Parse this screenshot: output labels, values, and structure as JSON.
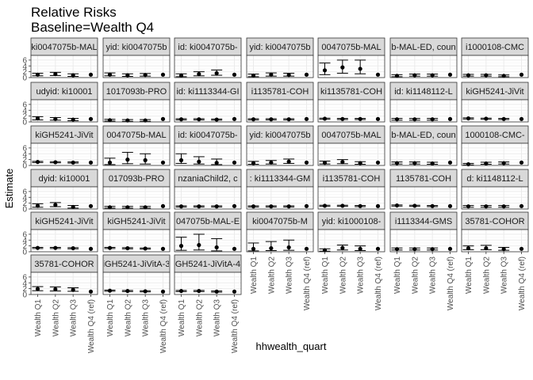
{
  "chart_data": {
    "type": "scatter",
    "title": "Relative Risks",
    "subtitle": "Baseline=Wealth Q4",
    "xlabel": "hhwealth_quart",
    "ylabel": "Estimate",
    "categories": [
      "Wealth Q1",
      "Wealth Q2",
      "Wealth Q3",
      "Wealth Q4 (ref)"
    ],
    "ylim": [
      0,
      7.6
    ],
    "yticks": [
      0,
      2,
      4,
      6
    ],
    "grid": true,
    "facet_columns": 7,
    "panels": [
      {
        "label": "ki0047075b-MAL",
        "est": [
          1.0,
          1.2,
          0.8,
          1.0
        ],
        "lo": [
          0.6,
          0.7,
          0.4,
          1.0
        ],
        "hi": [
          1.5,
          1.8,
          1.3,
          1.0
        ]
      },
      {
        "label": "yid: ki0047075b",
        "est": [
          1.0,
          0.8,
          0.9,
          1.0
        ],
        "lo": [
          0.6,
          0.4,
          0.5,
          1.0
        ],
        "hi": [
          1.6,
          1.3,
          1.4,
          1.0
        ]
      },
      {
        "label": "id: ki0047075b-",
        "est": [
          0.7,
          1.2,
          1.5,
          1.0
        ],
        "lo": [
          0.3,
          0.6,
          0.8,
          1.0
        ],
        "hi": [
          1.3,
          2.0,
          2.6,
          1.0
        ]
      },
      {
        "label": "yid: ki0047075b",
        "est": [
          0.7,
          1.0,
          0.9,
          1.0
        ],
        "lo": [
          0.3,
          0.5,
          0.5,
          1.0
        ],
        "hi": [
          1.2,
          1.6,
          1.5,
          1.0
        ]
      },
      {
        "label": "0047075b-MAL",
        "est": [
          2.5,
          3.5,
          3.0,
          1.0
        ],
        "lo": [
          1.0,
          1.5,
          1.3,
          1.0
        ],
        "hi": [
          5.0,
          6.0,
          6.0,
          1.0
        ]
      },
      {
        "label": "b-MAL-ED, coun",
        "est": [
          0.6,
          0.8,
          0.8,
          1.0
        ],
        "lo": [
          0.3,
          0.5,
          0.5,
          1.0
        ],
        "hi": [
          1.0,
          1.2,
          1.2,
          1.0
        ]
      },
      {
        "label": "i1000108-CMC",
        "est": [
          0.8,
          0.8,
          0.6,
          1.0
        ],
        "lo": [
          0.5,
          0.5,
          0.3,
          1.0
        ],
        "hi": [
          1.1,
          1.1,
          0.9,
          1.0
        ]
      },
      {
        "label": "udyid: ki10001",
        "est": [
          1.2,
          1.0,
          0.8,
          1.0
        ],
        "lo": [
          0.7,
          0.6,
          0.4,
          1.0
        ],
        "hi": [
          1.8,
          1.5,
          1.2,
          1.0
        ]
      },
      {
        "label": "1017093b-PRO",
        "est": [
          0.6,
          0.5,
          0.5,
          1.0
        ],
        "lo": [
          0.3,
          0.2,
          0.2,
          1.0
        ],
        "hi": [
          0.9,
          0.8,
          0.8,
          1.0
        ]
      },
      {
        "label": "id: ki1113344-GI",
        "est": [
          0.9,
          0.9,
          0.8,
          1.0
        ],
        "lo": [
          0.7,
          0.7,
          0.6,
          1.0
        ],
        "hi": [
          1.1,
          1.1,
          1.0,
          1.0
        ]
      },
      {
        "label": "i1135781-COH",
        "est": [
          0.9,
          0.9,
          0.9,
          1.0
        ],
        "lo": [
          0.7,
          0.7,
          0.7,
          1.0
        ],
        "hi": [
          1.1,
          1.1,
          1.1,
          1.0
        ]
      },
      {
        "label": "ki1135781-COH",
        "est": [
          1.1,
          1.0,
          1.0,
          1.0
        ],
        "lo": [
          0.9,
          0.8,
          0.8,
          1.0
        ],
        "hi": [
          1.3,
          1.2,
          1.2,
          1.0
        ]
      },
      {
        "label": "id: ki1148112-L",
        "est": [
          0.9,
          0.9,
          0.9,
          1.0
        ],
        "lo": [
          0.6,
          0.6,
          0.6,
          1.0
        ],
        "hi": [
          1.2,
          1.2,
          1.2,
          1.0
        ]
      },
      {
        "label": "kiGH5241-JiVit",
        "est": [
          1.2,
          1.1,
          1.0,
          1.0
        ],
        "lo": [
          1.0,
          0.9,
          0.8,
          1.0
        ],
        "hi": [
          1.4,
          1.3,
          1.2,
          1.0
        ]
      },
      {
        "label": "kiGH5241-JiVit",
        "est": [
          1.2,
          1.1,
          1.0,
          1.0
        ],
        "lo": [
          1.0,
          0.9,
          0.8,
          1.0
        ],
        "hi": [
          1.4,
          1.3,
          1.2,
          1.0
        ]
      },
      {
        "label": "0047075b-MAL",
        "est": [
          1.0,
          2.0,
          1.8,
          1.0
        ],
        "lo": [
          0.3,
          0.6,
          0.5,
          1.0
        ],
        "hi": [
          2.5,
          4.5,
          4.0,
          1.0
        ]
      },
      {
        "label": "id: ki0047075b-",
        "est": [
          1.8,
          1.3,
          0.9,
          1.0
        ],
        "lo": [
          0.7,
          0.5,
          0.3,
          1.0
        ],
        "hi": [
          4.0,
          3.0,
          2.2,
          1.0
        ]
      },
      {
        "label": "yid: ki0047075b",
        "est": [
          0.8,
          1.0,
          1.3,
          1.0
        ],
        "lo": [
          0.4,
          0.5,
          0.7,
          1.0
        ],
        "hi": [
          1.4,
          1.7,
          2.2,
          1.0
        ]
      },
      {
        "label": "0047075b-MAL",
        "est": [
          0.9,
          1.2,
          0.8,
          1.0
        ],
        "lo": [
          0.5,
          0.6,
          0.4,
          1.0
        ],
        "hi": [
          1.5,
          2.0,
          1.3,
          1.0
        ]
      },
      {
        "label": "b-MAL-ED, coun",
        "est": [
          0.8,
          0.8,
          0.7,
          1.0
        ],
        "lo": [
          0.5,
          0.5,
          0.4,
          1.0
        ],
        "hi": [
          1.2,
          1.2,
          1.1,
          1.0
        ]
      },
      {
        "label": "1000108-CMC-",
        "est": [
          0.4,
          0.7,
          0.8,
          1.0
        ],
        "lo": [
          0.2,
          0.4,
          0.5,
          1.0
        ],
        "hi": [
          0.7,
          1.1,
          1.2,
          1.0
        ]
      },
      {
        "label": "dyid: ki10001",
        "est": [
          1.1,
          1.4,
          0.7,
          1.0
        ],
        "lo": [
          0.6,
          0.8,
          0.3,
          1.0
        ],
        "hi": [
          1.8,
          2.2,
          1.2,
          1.0
        ]
      },
      {
        "label": "017093b-PRO",
        "est": [
          0.6,
          0.6,
          0.6,
          1.0
        ],
        "lo": [
          0.3,
          0.3,
          0.3,
          1.0
        ],
        "hi": [
          0.9,
          0.9,
          0.9,
          1.0
        ]
      },
      {
        "label": "nzaniaChild2, c",
        "est": [
          0.9,
          0.9,
          0.9,
          1.0
        ],
        "lo": [
          0.7,
          0.7,
          0.7,
          1.0
        ],
        "hi": [
          1.1,
          1.1,
          1.1,
          1.0
        ]
      },
      {
        "label": ": ki1113344-GM",
        "est": [
          0.9,
          0.9,
          0.9,
          1.0
        ],
        "lo": [
          0.7,
          0.7,
          0.7,
          1.0
        ],
        "hi": [
          1.1,
          1.1,
          1.1,
          1.0
        ]
      },
      {
        "label": "i1135781-COH",
        "est": [
          1.1,
          1.1,
          1.0,
          1.0
        ],
        "lo": [
          0.9,
          0.9,
          0.8,
          1.0
        ],
        "hi": [
          1.3,
          1.3,
          1.2,
          1.0
        ]
      },
      {
        "label": "1135781-COH",
        "est": [
          1.2,
          1.1,
          1.0,
          1.0
        ],
        "lo": [
          1.0,
          0.9,
          0.8,
          1.0
        ],
        "hi": [
          1.4,
          1.3,
          1.2,
          1.0
        ]
      },
      {
        "label": "d: ki1148112-L",
        "est": [
          0.9,
          0.9,
          0.9,
          1.0
        ],
        "lo": [
          0.6,
          0.6,
          0.6,
          1.0
        ],
        "hi": [
          1.2,
          1.2,
          1.2,
          1.0
        ]
      },
      {
        "label": "kiGH5241-JiVit",
        "est": [
          1.3,
          1.3,
          1.2,
          1.0
        ],
        "lo": [
          1.1,
          1.1,
          1.0,
          1.0
        ],
        "hi": [
          1.5,
          1.5,
          1.4,
          1.0
        ]
      },
      {
        "label": "kiGH5241-JiVit",
        "est": [
          1.3,
          1.2,
          1.1,
          1.0
        ],
        "lo": [
          1.1,
          1.0,
          0.9,
          1.0
        ],
        "hi": [
          1.5,
          1.4,
          1.3,
          1.0
        ]
      },
      {
        "label": "047075b-MAL-E",
        "est": [
          2.0,
          2.3,
          1.5,
          1.0
        ],
        "lo": [
          0.5,
          0.6,
          0.3,
          1.0
        ],
        "hi": [
          5.0,
          6.0,
          4.5,
          1.0
        ]
      },
      {
        "label": "ki0047075b-M",
        "est": [
          1.0,
          1.2,
          1.5,
          1.0
        ],
        "lo": [
          0.3,
          0.4,
          0.5,
          1.0
        ],
        "hi": [
          3.0,
          3.5,
          4.0,
          1.0
        ]
      },
      {
        "label": "yid: ki1000108-",
        "est": [
          0.5,
          1.3,
          1.0,
          1.0
        ],
        "lo": [
          0.2,
          0.6,
          0.4,
          1.0
        ],
        "hi": [
          1.0,
          2.3,
          2.0,
          1.0
        ]
      },
      {
        "label": "i1113344-GMS",
        "est": [
          0.9,
          0.9,
          0.9,
          1.0
        ],
        "lo": [
          0.6,
          0.6,
          0.6,
          1.0
        ],
        "hi": [
          1.3,
          1.3,
          1.3,
          1.0
        ]
      },
      {
        "label": "35781-COHOR",
        "est": [
          1.2,
          1.2,
          0.9,
          1.0
        ],
        "lo": [
          0.7,
          0.7,
          0.5,
          1.0
        ],
        "hi": [
          2.0,
          2.2,
          1.5,
          1.0
        ]
      },
      {
        "label": "35781-COHOR",
        "est": [
          1.9,
          1.8,
          1.6,
          1.0
        ],
        "lo": [
          1.3,
          1.2,
          1.1,
          1.0
        ],
        "hi": [
          2.7,
          2.6,
          2.3,
          1.0
        ]
      },
      {
        "label": "iGH5241-JiVitA-3",
        "est": [
          1.3,
          1.2,
          1.1,
          1.0
        ],
        "lo": [
          1.1,
          1.0,
          0.9,
          1.0
        ],
        "hi": [
          1.5,
          1.4,
          1.3,
          1.0
        ]
      },
      {
        "label": "GH5241-JiVitA-4",
        "est": [
          1.2,
          1.2,
          1.0,
          1.0
        ],
        "lo": [
          1.0,
          1.0,
          0.8,
          1.0
        ],
        "hi": [
          1.4,
          1.4,
          1.2,
          1.0
        ]
      }
    ]
  },
  "colors": {
    "panel_bg": "#ffffff",
    "panel_border": "#333333",
    "grid_major": "#ebebeb",
    "grid_minor": "#f5f5f5",
    "strip_bg": "#d9d9d9",
    "point": "#000000",
    "tick_text": "#4d4d4d"
  }
}
